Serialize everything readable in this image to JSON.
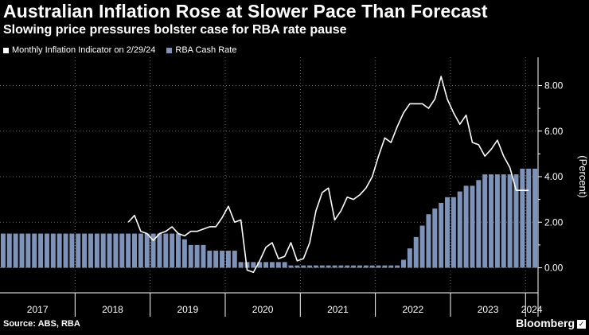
{
  "header": {
    "title": "Australian Inflation Rose at Slower Pace Than Forecast",
    "subtitle": "Slowing price pressures bolster case for RBA rate pause"
  },
  "legend": {
    "line_label": "Monthly Inflation Indicator on 2/29/24",
    "bar_label": "RBA Cash Rate"
  },
  "footer": {
    "source": "Source: ABS, RBA",
    "brand": "Bloomberg"
  },
  "colors": {
    "background": "#000000",
    "line": "#ffffff",
    "bars": "#7e93b9",
    "grid": "#6a6a6a"
  },
  "chart_data": {
    "type": "bar",
    "title": "Australian Inflation Rose at Slower Pace Than Forecast",
    "subtitle": "Slowing price pressures bolster case for RBA rate pause",
    "ylabel": "(Percent)",
    "xlabel": "",
    "ylim": [
      -0.5,
      9.0
    ],
    "y_ticks": [
      "0.00",
      "2.00",
      "4.00",
      "6.00",
      "8.00"
    ],
    "y_tick_values": [
      0,
      2,
      4,
      6,
      8
    ],
    "y_axis_position": "right",
    "grid": "dotted",
    "legend_position": "top-left",
    "x_start": "2017-01",
    "x_end": "2024-03",
    "year_labels": [
      "2017",
      "2018",
      "2019",
      "2020",
      "2021",
      "2022",
      "2023",
      "2024"
    ],
    "series": [
      {
        "name": "RBA Cash Rate",
        "type": "bar",
        "x": [
          "2017-01",
          "2017-02",
          "2017-03",
          "2017-04",
          "2017-05",
          "2017-06",
          "2017-07",
          "2017-08",
          "2017-09",
          "2017-10",
          "2017-11",
          "2017-12",
          "2018-01",
          "2018-02",
          "2018-03",
          "2018-04",
          "2018-05",
          "2018-06",
          "2018-07",
          "2018-08",
          "2018-09",
          "2018-10",
          "2018-11",
          "2018-12",
          "2019-01",
          "2019-02",
          "2019-03",
          "2019-04",
          "2019-05",
          "2019-06",
          "2019-07",
          "2019-08",
          "2019-09",
          "2019-10",
          "2019-11",
          "2019-12",
          "2020-01",
          "2020-02",
          "2020-03",
          "2020-04",
          "2020-05",
          "2020-06",
          "2020-07",
          "2020-08",
          "2020-09",
          "2020-10",
          "2020-11",
          "2020-12",
          "2021-01",
          "2021-02",
          "2021-03",
          "2021-04",
          "2021-05",
          "2021-06",
          "2021-07",
          "2021-08",
          "2021-09",
          "2021-10",
          "2021-11",
          "2021-12",
          "2022-01",
          "2022-02",
          "2022-03",
          "2022-04",
          "2022-05",
          "2022-06",
          "2022-07",
          "2022-08",
          "2022-09",
          "2022-10",
          "2022-11",
          "2022-12",
          "2023-01",
          "2023-02",
          "2023-03",
          "2023-04",
          "2023-05",
          "2023-06",
          "2023-07",
          "2023-08",
          "2023-09",
          "2023-10",
          "2023-11",
          "2023-12",
          "2024-01",
          "2024-02"
        ],
        "values": [
          1.5,
          1.5,
          1.5,
          1.5,
          1.5,
          1.5,
          1.5,
          1.5,
          1.5,
          1.5,
          1.5,
          1.5,
          1.5,
          1.5,
          1.5,
          1.5,
          1.5,
          1.5,
          1.5,
          1.5,
          1.5,
          1.5,
          1.5,
          1.5,
          1.5,
          1.5,
          1.5,
          1.5,
          1.5,
          1.25,
          1.0,
          1.0,
          1.0,
          0.75,
          0.75,
          0.75,
          0.75,
          0.75,
          0.25,
          0.25,
          0.25,
          0.25,
          0.25,
          0.25,
          0.25,
          0.25,
          0.1,
          0.1,
          0.1,
          0.1,
          0.1,
          0.1,
          0.1,
          0.1,
          0.1,
          0.1,
          0.1,
          0.1,
          0.1,
          0.1,
          0.1,
          0.1,
          0.1,
          0.1,
          0.35,
          0.85,
          1.35,
          1.85,
          2.35,
          2.6,
          2.85,
          3.1,
          3.1,
          3.35,
          3.6,
          3.6,
          3.85,
          4.1,
          4.1,
          4.1,
          4.1,
          4.1,
          4.1,
          4.35,
          4.35,
          4.35
        ]
      },
      {
        "name": "Monthly Inflation Indicator on 2/29/24",
        "type": "line",
        "x": [
          "2018-09",
          "2018-10",
          "2018-11",
          "2018-12",
          "2019-01",
          "2019-02",
          "2019-03",
          "2019-04",
          "2019-05",
          "2019-06",
          "2019-07",
          "2019-08",
          "2019-09",
          "2019-10",
          "2019-11",
          "2019-12",
          "2020-01",
          "2020-02",
          "2020-03",
          "2020-04",
          "2020-05",
          "2020-06",
          "2020-07",
          "2020-08",
          "2020-09",
          "2020-10",
          "2020-11",
          "2020-12",
          "2021-01",
          "2021-02",
          "2021-03",
          "2021-04",
          "2021-05",
          "2021-06",
          "2021-07",
          "2021-08",
          "2021-09",
          "2021-10",
          "2021-11",
          "2021-12",
          "2022-01",
          "2022-02",
          "2022-03",
          "2022-04",
          "2022-05",
          "2022-06",
          "2022-07",
          "2022-08",
          "2022-09",
          "2022-10",
          "2022-11",
          "2022-12",
          "2023-01",
          "2023-02",
          "2023-03",
          "2023-04",
          "2023-05",
          "2023-06",
          "2023-07",
          "2023-08",
          "2023-09",
          "2023-10",
          "2023-11",
          "2023-12",
          "2024-01"
        ],
        "values": [
          2.0,
          2.3,
          1.6,
          1.5,
          1.2,
          1.5,
          1.6,
          1.8,
          1.5,
          1.4,
          1.6,
          1.6,
          1.7,
          1.8,
          1.8,
          2.2,
          2.7,
          2.0,
          2.1,
          -0.1,
          -0.2,
          0.3,
          0.9,
          1.1,
          0.4,
          0.5,
          1.1,
          0.3,
          0.4,
          1.1,
          2.5,
          3.3,
          3.5,
          2.1,
          2.5,
          3.1,
          3.0,
          3.2,
          3.5,
          4.0,
          4.9,
          5.7,
          5.5,
          6.2,
          6.8,
          7.2,
          7.2,
          7.2,
          7.0,
          7.4,
          8.4,
          7.4,
          6.8,
          6.3,
          6.7,
          5.5,
          5.4,
          4.9,
          5.2,
          5.6,
          4.9,
          4.4,
          3.4,
          3.4,
          3.4
        ]
      }
    ]
  }
}
